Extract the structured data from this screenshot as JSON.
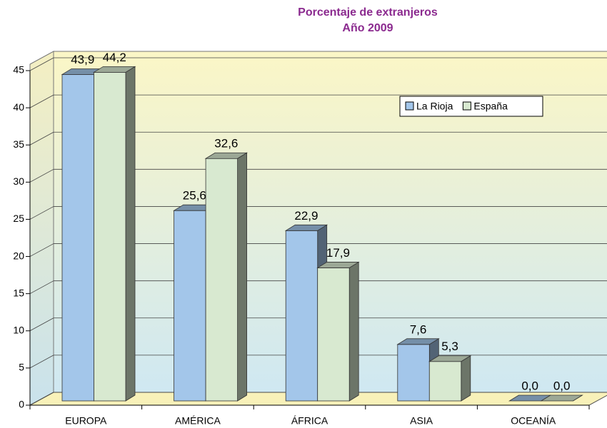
{
  "chart_data": {
    "type": "bar3d",
    "title": "Porcentaje de extranjeros",
    "subtitle": "Año 2009",
    "categories": [
      "EUROPA",
      "AMÉRICA",
      "ÁFRICA",
      "ASIA",
      "OCEANÍA"
    ],
    "series": [
      {
        "name": "La Rioja",
        "color": "#a3c6ea",
        "values": [
          43.9,
          25.6,
          22.9,
          7.6,
          0.0
        ],
        "value_labels": [
          "43,9",
          "25,6",
          "22,9",
          "7,6",
          "0,0"
        ]
      },
      {
        "name": "España",
        "color": "#d8e9d0",
        "values": [
          44.2,
          32.6,
          17.9,
          5.3,
          0.0
        ],
        "value_labels": [
          "44,2",
          "32,6",
          "17,9",
          "5,3",
          "0,0"
        ]
      }
    ],
    "ylim": [
      0,
      45
    ],
    "yticks": [
      0,
      5,
      10,
      15,
      20,
      25,
      30,
      35,
      40,
      45
    ],
    "grid": true,
    "legend": "upper right"
  }
}
